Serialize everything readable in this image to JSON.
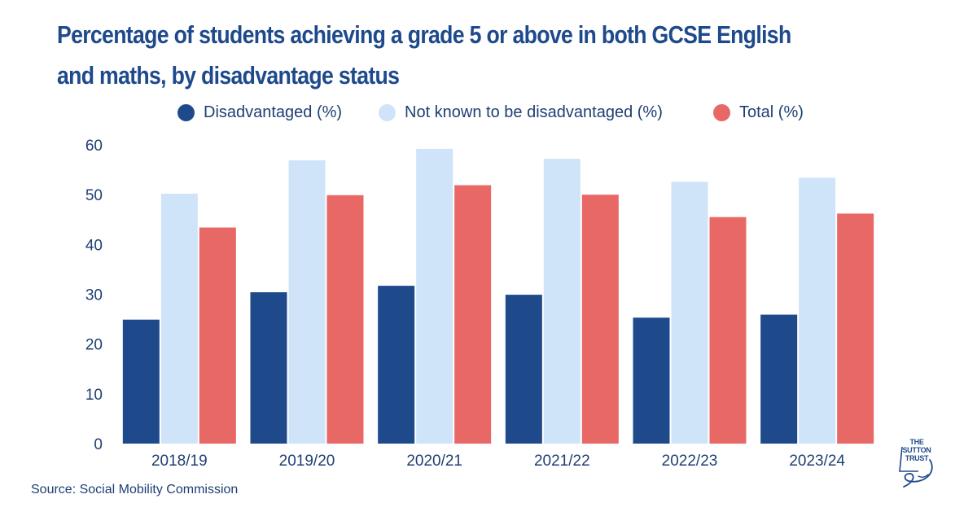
{
  "chart_data": {
    "type": "bar",
    "title": "Percentage of students achieving a grade 5 or above in both GCSE English and maths, by disadvantage status",
    "categories": [
      "2018/19",
      "2019/20",
      "2020/21",
      "2021/22",
      "2022/23",
      "2023/24"
    ],
    "series": [
      {
        "name": "Disadvantaged (%)",
        "color": "#1e4a8c",
        "values": [
          24.9,
          30.4,
          31.7,
          29.9,
          25.3,
          25.9
        ]
      },
      {
        "name": "Not known to be disadvantaged (%)",
        "color": "#cfe4f8",
        "values": [
          50.2,
          56.9,
          59.2,
          57.2,
          52.6,
          53.4
        ]
      },
      {
        "name": "Total (%)",
        "color": "#e86866",
        "values": [
          43.4,
          49.9,
          51.9,
          50.0,
          45.5,
          46.2
        ]
      }
    ],
    "yticks": [
      0,
      10,
      20,
      30,
      40,
      50,
      60
    ],
    "ylim": [
      0,
      60
    ],
    "xlabel": "",
    "ylabel": "",
    "grid": false,
    "legend_position": "top"
  },
  "source": "Source: Social Mobility Commission",
  "logo": {
    "lines": [
      "THE",
      "SUTTON",
      "TRUST"
    ],
    "color": "#1e4a8c"
  }
}
